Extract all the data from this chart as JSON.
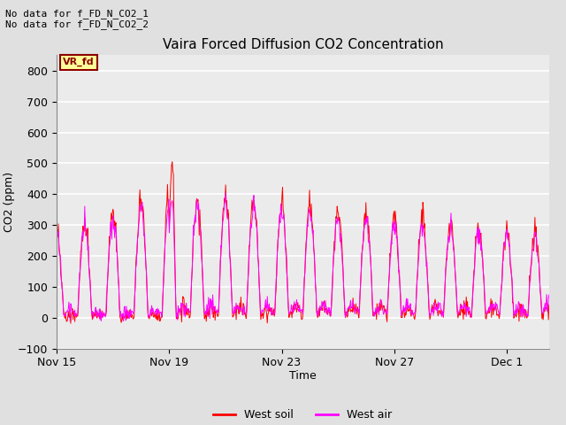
{
  "title": "Vaira Forced Diffusion CO2 Concentration",
  "xlabel": "Time",
  "ylabel": "CO2 (ppm)",
  "ylim": [
    -100,
    850
  ],
  "yticks": [
    -100,
    0,
    100,
    200,
    300,
    400,
    500,
    600,
    700,
    800
  ],
  "annotation_top": "No data for f_FD_N_CO2_1\nNo data for f_FD_N_CO2_2",
  "box_label": "VR_fd",
  "x_tick_labels": [
    "Nov 15",
    "Nov 19",
    "Nov 23",
    "Nov 27",
    "Dec 1"
  ],
  "x_tick_pos": [
    0,
    4,
    8,
    12,
    16
  ],
  "xlim": [
    0,
    17.5
  ],
  "soil_color": "#ff0000",
  "air_color": "#ff00ff",
  "bg_color": "#e0e0e0",
  "plot_bg_color": "#ebebeb",
  "grid_color": "#ffffff",
  "legend_items": [
    {
      "label": "West soil",
      "color": "#ff0000"
    },
    {
      "label": "West air",
      "color": "#ff00ff"
    }
  ]
}
